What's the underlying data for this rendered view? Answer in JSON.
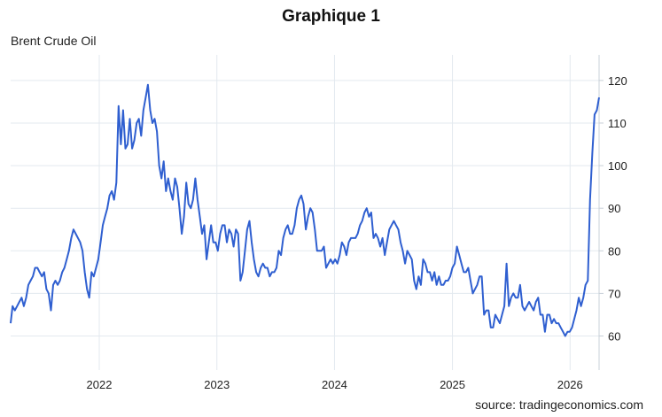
{
  "title": "Graphique 1",
  "source": "source: tradingeconomics.com",
  "colors": {
    "line": "#2f5fd0",
    "grid": "#e3e9ef",
    "axis": "#c8d0d8",
    "text": "#222222"
  },
  "chart_data": {
    "type": "line",
    "title": "Graphique 1",
    "subtitle": "Brent Crude Oil",
    "xlabel": "",
    "ylabel": "",
    "x_ticks": [
      "2022",
      "2023",
      "2024",
      "2025",
      "2026"
    ],
    "y_ticks": [
      60,
      70,
      80,
      90,
      100,
      110,
      120
    ],
    "xlim": [
      "2021-04",
      "2026-04"
    ],
    "ylim": [
      52,
      126
    ],
    "grid": true,
    "series": [
      {
        "values": [
          [
            "2021-04-01",
            63
          ],
          [
            "2021-04-07",
            67
          ],
          [
            "2021-04-14",
            66
          ],
          [
            "2021-04-21",
            67
          ],
          [
            "2021-04-28",
            68
          ],
          [
            "2021-05-05",
            69
          ],
          [
            "2021-05-12",
            67
          ],
          [
            "2021-05-19",
            69
          ],
          [
            "2021-05-26",
            72
          ],
          [
            "2021-06-02",
            73
          ],
          [
            "2021-06-09",
            74
          ],
          [
            "2021-06-16",
            76
          ],
          [
            "2021-06-23",
            76
          ],
          [
            "2021-06-30",
            75
          ],
          [
            "2021-07-07",
            74
          ],
          [
            "2021-07-14",
            75
          ],
          [
            "2021-07-21",
            71
          ],
          [
            "2021-07-28",
            70
          ],
          [
            "2021-08-04",
            66
          ],
          [
            "2021-08-11",
            72
          ],
          [
            "2021-08-18",
            73
          ],
          [
            "2021-08-25",
            72
          ],
          [
            "2021-09-01",
            73
          ],
          [
            "2021-09-08",
            75
          ],
          [
            "2021-09-15",
            76
          ],
          [
            "2021-09-22",
            78
          ],
          [
            "2021-09-29",
            80
          ],
          [
            "2021-10-06",
            83
          ],
          [
            "2021-10-13",
            85
          ],
          [
            "2021-10-20",
            84
          ],
          [
            "2021-10-27",
            83
          ],
          [
            "2021-11-03",
            82
          ],
          [
            "2021-11-10",
            80
          ],
          [
            "2021-11-17",
            75
          ],
          [
            "2021-11-24",
            71
          ],
          [
            "2021-12-01",
            69
          ],
          [
            "2021-12-08",
            75
          ],
          [
            "2021-12-15",
            74
          ],
          [
            "2021-12-22",
            76
          ],
          [
            "2021-12-29",
            78
          ],
          [
            "2022-01-05",
            82
          ],
          [
            "2022-01-12",
            86
          ],
          [
            "2022-01-19",
            88
          ],
          [
            "2022-01-26",
            90
          ],
          [
            "2022-02-02",
            93
          ],
          [
            "2022-02-09",
            94
          ],
          [
            "2022-02-16",
            92
          ],
          [
            "2022-02-23",
            96
          ],
          [
            "2022-03-02",
            114
          ],
          [
            "2022-03-09",
            105
          ],
          [
            "2022-03-16",
            113
          ],
          [
            "2022-03-23",
            104
          ],
          [
            "2022-03-30",
            105
          ],
          [
            "2022-04-06",
            111
          ],
          [
            "2022-04-13",
            104
          ],
          [
            "2022-04-20",
            106
          ],
          [
            "2022-04-27",
            110
          ],
          [
            "2022-05-04",
            111
          ],
          [
            "2022-05-11",
            107
          ],
          [
            "2022-05-18",
            113
          ],
          [
            "2022-05-25",
            116
          ],
          [
            "2022-06-01",
            119
          ],
          [
            "2022-06-08",
            113
          ],
          [
            "2022-06-15",
            110
          ],
          [
            "2022-06-22",
            111
          ],
          [
            "2022-06-29",
            108
          ],
          [
            "2022-07-06",
            100
          ],
          [
            "2022-07-13",
            97
          ],
          [
            "2022-07-20",
            101
          ],
          [
            "2022-07-27",
            94
          ],
          [
            "2022-08-03",
            97
          ],
          [
            "2022-08-10",
            94
          ],
          [
            "2022-08-17",
            92
          ],
          [
            "2022-08-24",
            97
          ],
          [
            "2022-08-31",
            95
          ],
          [
            "2022-09-07",
            90
          ],
          [
            "2022-09-14",
            84
          ],
          [
            "2022-09-21",
            88
          ],
          [
            "2022-09-28",
            96
          ],
          [
            "2022-10-05",
            91
          ],
          [
            "2022-10-12",
            90
          ],
          [
            "2022-10-19",
            92
          ],
          [
            "2022-10-26",
            97
          ],
          [
            "2022-11-02",
            92
          ],
          [
            "2022-11-09",
            88
          ],
          [
            "2022-11-16",
            84
          ],
          [
            "2022-11-23",
            86
          ],
          [
            "2022-11-30",
            78
          ],
          [
            "2022-12-07",
            82
          ],
          [
            "2022-12-14",
            86
          ],
          [
            "2022-12-21",
            82
          ],
          [
            "2022-12-28",
            82
          ],
          [
            "2023-01-04",
            80
          ],
          [
            "2023-01-11",
            84
          ],
          [
            "2023-01-18",
            86
          ],
          [
            "2023-01-25",
            86
          ],
          [
            "2023-02-01",
            82
          ],
          [
            "2023-02-08",
            85
          ],
          [
            "2023-02-15",
            84
          ],
          [
            "2023-02-22",
            81
          ],
          [
            "2023-03-01",
            85
          ],
          [
            "2023-03-08",
            84
          ],
          [
            "2023-03-15",
            73
          ],
          [
            "2023-03-22",
            75
          ],
          [
            "2023-03-29",
            80
          ],
          [
            "2023-04-05",
            85
          ],
          [
            "2023-04-12",
            87
          ],
          [
            "2023-04-19",
            82
          ],
          [
            "2023-04-26",
            78
          ],
          [
            "2023-05-03",
            75
          ],
          [
            "2023-05-10",
            74
          ],
          [
            "2023-05-17",
            76
          ],
          [
            "2023-05-24",
            77
          ],
          [
            "2023-05-31",
            76
          ],
          [
            "2023-06-07",
            76
          ],
          [
            "2023-06-14",
            74
          ],
          [
            "2023-06-21",
            75
          ],
          [
            "2023-06-28",
            75
          ],
          [
            "2023-07-05",
            76
          ],
          [
            "2023-07-12",
            80
          ],
          [
            "2023-07-19",
            79
          ],
          [
            "2023-07-26",
            83
          ],
          [
            "2023-08-02",
            85
          ],
          [
            "2023-08-09",
            86
          ],
          [
            "2023-08-16",
            84
          ],
          [
            "2023-08-23",
            84
          ],
          [
            "2023-08-30",
            86
          ],
          [
            "2023-09-06",
            90
          ],
          [
            "2023-09-13",
            92
          ],
          [
            "2023-09-20",
            93
          ],
          [
            "2023-09-27",
            91
          ],
          [
            "2023-10-04",
            85
          ],
          [
            "2023-10-11",
            88
          ],
          [
            "2023-10-18",
            90
          ],
          [
            "2023-10-25",
            89
          ],
          [
            "2023-11-01",
            85
          ],
          [
            "2023-11-08",
            80
          ],
          [
            "2023-11-15",
            80
          ],
          [
            "2023-11-22",
            80
          ],
          [
            "2023-11-29",
            81
          ],
          [
            "2023-12-06",
            76
          ],
          [
            "2023-12-13",
            77
          ],
          [
            "2023-12-20",
            78
          ],
          [
            "2023-12-27",
            77
          ],
          [
            "2024-01-03",
            78
          ],
          [
            "2024-01-10",
            77
          ],
          [
            "2024-01-17",
            79
          ],
          [
            "2024-01-24",
            82
          ],
          [
            "2024-01-31",
            81
          ],
          [
            "2024-02-07",
            79
          ],
          [
            "2024-02-14",
            82
          ],
          [
            "2024-02-21",
            83
          ],
          [
            "2024-02-28",
            83
          ],
          [
            "2024-03-06",
            83
          ],
          [
            "2024-03-13",
            84
          ],
          [
            "2024-03-20",
            86
          ],
          [
            "2024-03-27",
            87
          ],
          [
            "2024-04-03",
            89
          ],
          [
            "2024-04-10",
            90
          ],
          [
            "2024-04-17",
            88
          ],
          [
            "2024-04-24",
            89
          ],
          [
            "2024-05-01",
            83
          ],
          [
            "2024-05-08",
            84
          ],
          [
            "2024-05-15",
            83
          ],
          [
            "2024-05-22",
            81
          ],
          [
            "2024-05-29",
            83
          ],
          [
            "2024-06-05",
            79
          ],
          [
            "2024-06-12",
            82
          ],
          [
            "2024-06-19",
            85
          ],
          [
            "2024-06-26",
            86
          ],
          [
            "2024-07-03",
            87
          ],
          [
            "2024-07-10",
            86
          ],
          [
            "2024-07-17",
            85
          ],
          [
            "2024-07-24",
            82
          ],
          [
            "2024-07-31",
            80
          ],
          [
            "2024-08-07",
            77
          ],
          [
            "2024-08-14",
            80
          ],
          [
            "2024-08-21",
            79
          ],
          [
            "2024-08-28",
            78
          ],
          [
            "2024-09-04",
            73
          ],
          [
            "2024-09-11",
            71
          ],
          [
            "2024-09-18",
            74
          ],
          [
            "2024-09-25",
            72
          ],
          [
            "2024-10-02",
            78
          ],
          [
            "2024-10-09",
            77
          ],
          [
            "2024-10-16",
            75
          ],
          [
            "2024-10-23",
            75
          ],
          [
            "2024-10-30",
            73
          ],
          [
            "2024-11-06",
            75
          ],
          [
            "2024-11-13",
            72
          ],
          [
            "2024-11-20",
            74
          ],
          [
            "2024-11-27",
            72
          ],
          [
            "2024-12-04",
            72
          ],
          [
            "2024-12-11",
            73
          ],
          [
            "2024-12-18",
            73
          ],
          [
            "2024-12-25",
            74
          ],
          [
            "2025-01-01",
            76
          ],
          [
            "2025-01-08",
            77
          ],
          [
            "2025-01-15",
            81
          ],
          [
            "2025-01-22",
            79
          ],
          [
            "2025-01-29",
            77
          ],
          [
            "2025-02-05",
            75
          ],
          [
            "2025-02-12",
            75
          ],
          [
            "2025-02-19",
            76
          ],
          [
            "2025-02-26",
            73
          ],
          [
            "2025-03-05",
            70
          ],
          [
            "2025-03-12",
            71
          ],
          [
            "2025-03-19",
            72
          ],
          [
            "2025-03-26",
            74
          ],
          [
            "2025-04-02",
            74
          ],
          [
            "2025-04-09",
            65
          ],
          [
            "2025-04-16",
            66
          ],
          [
            "2025-04-23",
            66
          ],
          [
            "2025-04-30",
            62
          ],
          [
            "2025-05-07",
            62
          ],
          [
            "2025-05-14",
            65
          ],
          [
            "2025-05-21",
            64
          ],
          [
            "2025-05-28",
            63
          ],
          [
            "2025-06-04",
            65
          ],
          [
            "2025-06-11",
            67
          ],
          [
            "2025-06-18",
            77
          ],
          [
            "2025-06-25",
            67
          ],
          [
            "2025-07-02",
            69
          ],
          [
            "2025-07-09",
            70
          ],
          [
            "2025-07-16",
            69
          ],
          [
            "2025-07-23",
            69
          ],
          [
            "2025-07-30",
            72
          ],
          [
            "2025-08-06",
            67
          ],
          [
            "2025-08-13",
            66
          ],
          [
            "2025-08-20",
            67
          ],
          [
            "2025-08-27",
            68
          ],
          [
            "2025-09-03",
            67
          ],
          [
            "2025-09-10",
            66
          ],
          [
            "2025-09-17",
            68
          ],
          [
            "2025-09-24",
            69
          ],
          [
            "2025-10-01",
            65
          ],
          [
            "2025-10-08",
            65
          ],
          [
            "2025-10-15",
            61
          ],
          [
            "2025-10-22",
            65
          ],
          [
            "2025-10-29",
            65
          ],
          [
            "2025-11-05",
            63
          ],
          [
            "2025-11-12",
            64
          ],
          [
            "2025-11-19",
            63
          ],
          [
            "2025-11-26",
            63
          ],
          [
            "2025-12-03",
            62
          ],
          [
            "2025-12-10",
            61
          ],
          [
            "2025-12-17",
            60
          ],
          [
            "2025-12-24",
            61
          ],
          [
            "2025-12-31",
            61
          ],
          [
            "2026-01-07",
            62
          ],
          [
            "2026-01-14",
            64
          ],
          [
            "2026-01-21",
            66
          ],
          [
            "2026-01-28",
            69
          ],
          [
            "2026-02-04",
            67
          ],
          [
            "2026-02-11",
            69
          ],
          [
            "2026-02-18",
            72
          ],
          [
            "2026-02-25",
            73
          ],
          [
            "2026-03-04",
            92
          ],
          [
            "2026-03-11",
            103
          ],
          [
            "2026-03-18",
            112
          ],
          [
            "2026-03-25",
            113
          ],
          [
            "2026-04-01",
            116
          ]
        ]
      }
    ]
  }
}
